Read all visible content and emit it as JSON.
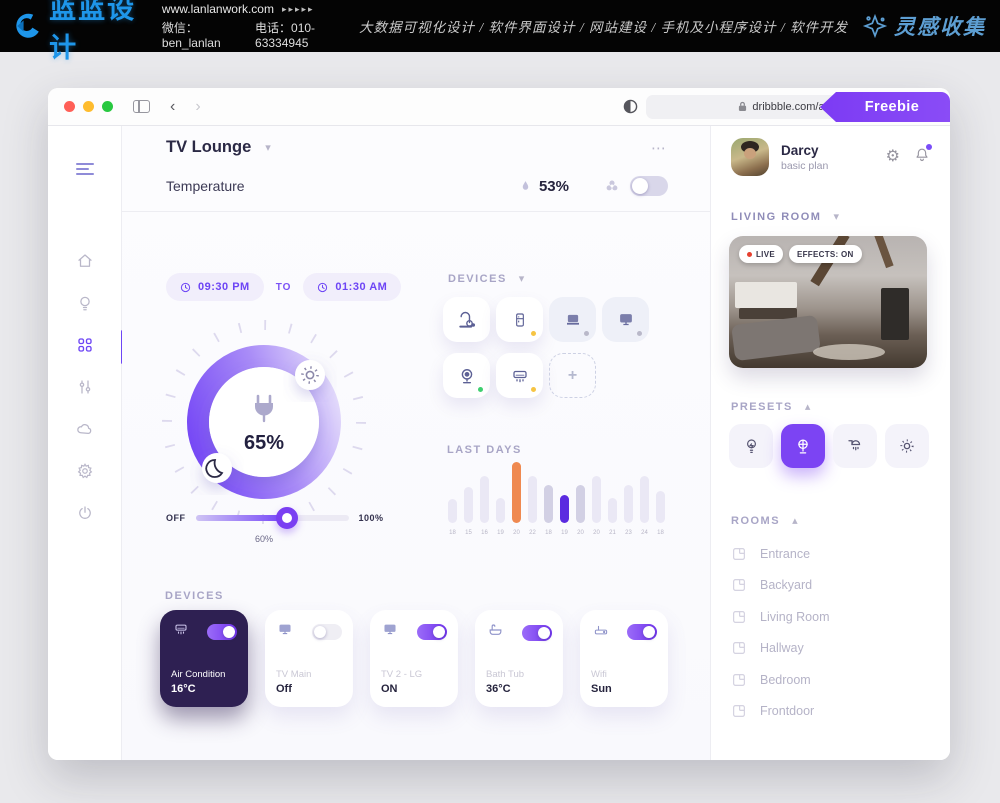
{
  "glyphs": {
    "caret_down": "▾",
    "caret_up": "▴",
    "ellipsis": "⋯",
    "back": "‹",
    "forward": "›",
    "refresh": "↻",
    "gear": "⚙",
    "plus": "+"
  },
  "banner": {
    "logo": "蓝蓝设计",
    "site": "www.lanlanwork.com",
    "site_arrows": "▸▸▸▸▸",
    "wechat": "微信：ben_lanlan",
    "phone": "电话：010-63334945",
    "services": "大数据可视化设计 / 软件界面设计 / 网站建设 / 手机及小程序设计 / 软件开发",
    "brand_right": "灵感收集"
  },
  "browser": {
    "url": "dribbble.com/arshakir",
    "ribbon": "Freebie"
  },
  "header": {
    "title": "TV Lounge",
    "subtitle": "Temperature",
    "humidity": "53%"
  },
  "schedule": {
    "from": "09:30 PM",
    "to_label": "TO",
    "to": "01:30 AM"
  },
  "dial": {
    "value": "65%"
  },
  "slider": {
    "min": "OFF",
    "max": "100%",
    "current": "60%"
  },
  "devices_grid": {
    "label": "DEVICES",
    "tiles": [
      {
        "name": "vacuum",
        "status": ""
      },
      {
        "name": "fridge",
        "status": "yellow"
      },
      {
        "name": "laptop",
        "status": "gray"
      },
      {
        "name": "monitor",
        "status": "gray"
      },
      {
        "name": "webcam",
        "status": "green"
      },
      {
        "name": "air-conditioner",
        "status": "yellow"
      },
      {
        "name": "add-device",
        "status": ""
      }
    ]
  },
  "chart_data": {
    "type": "bar",
    "title": "LAST DAYS",
    "categories": [
      18,
      15,
      16,
      19,
      20,
      22,
      18,
      19,
      20,
      20,
      21,
      23,
      24,
      18
    ],
    "values": [
      25,
      38,
      50,
      27,
      65,
      50,
      40,
      30,
      40,
      50,
      27,
      40,
      50,
      34
    ],
    "ylim": [
      0,
      70
    ],
    "xlabel": "day",
    "ylabel": "",
    "grid": false,
    "legend": "none",
    "colors": {
      "default": "#eae8f5",
      "muted": "#d2d0e4",
      "orange": "#ef8950",
      "purple": "#5b2be0",
      "orange_index": 4,
      "purple_index": 7,
      "muted_indices": [
        6,
        8
      ]
    }
  },
  "devices_cards": {
    "label": "DEVICES",
    "cards": [
      {
        "name": "Air Condition",
        "value": "16°C",
        "toggle": "on",
        "style": "dark",
        "icon": "air-conditioner"
      },
      {
        "name": "TV Main",
        "value": "Off",
        "toggle": "off",
        "style": "light",
        "icon": "tv"
      },
      {
        "name": "TV 2 - LG",
        "value": "ON",
        "toggle": "on",
        "style": "light",
        "icon": "tv"
      },
      {
        "name": "Bath Tub",
        "value": "36°C",
        "toggle": "on",
        "style": "light",
        "icon": "bathtub"
      },
      {
        "name": "Wifi",
        "value": "Sun",
        "toggle": "on",
        "style": "light",
        "icon": "router"
      }
    ]
  },
  "panel": {
    "user": {
      "name": "Darcy",
      "plan": "basic plan"
    },
    "room_label": "LIVING ROOM",
    "camera": {
      "live": "LIVE",
      "effects": "EFFECTS: ON"
    },
    "presets_label": "PRESETS",
    "presets_active_index": 1,
    "rooms_label": "ROOMS",
    "rooms": [
      "Entrance",
      "Backyard",
      "Living Room",
      "Hallway",
      "Bedroom",
      "Frontdoor"
    ]
  },
  "colors": {
    "accent": "#7a3ff2",
    "accent_text": "#6d45f5",
    "dark_card": "#2e2052",
    "status_yellow": "#f6c443",
    "status_green": "#3ecf6f",
    "status_gray": "#b9b8c9",
    "live_red": "#e6402f",
    "banner_blue": "#1e96ea"
  }
}
